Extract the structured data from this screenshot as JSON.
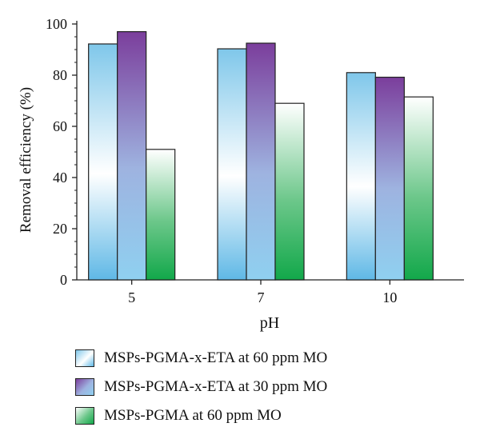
{
  "chart_data": {
    "type": "bar",
    "title": "",
    "xlabel": "pH",
    "ylabel": "Removal efficiency (%)",
    "categories": [
      "5",
      "7",
      "10"
    ],
    "ylim": [
      0,
      100
    ],
    "yticks": [
      "0",
      "20",
      "40",
      "60",
      "80",
      "100"
    ],
    "grid": false,
    "legend_position": "bottom",
    "series": [
      {
        "name": "MSPs-PGMA-x-ETA at 60 ppm MO",
        "values": [
          92.2,
          90.3,
          81.0
        ],
        "color_top": "#7fc7ea",
        "color_mid": "#ffffff",
        "color_bottom": "#5fb8e6"
      },
      {
        "name": "MSPs-PGMA-x-ETA at 30 ppm MO",
        "values": [
          97.0,
          92.5,
          79.2
        ],
        "color_top": "#7b3e9c",
        "color_mid": "#9eb3e0",
        "color_bottom": "#8fd0f0"
      },
      {
        "name": "MSPs-PGMA at 60 ppm MO",
        "values": [
          51.0,
          69.0,
          71.5
        ],
        "color_top": "#ffffff",
        "color_mid": "#6cc78a",
        "color_bottom": "#12a84a"
      }
    ]
  }
}
